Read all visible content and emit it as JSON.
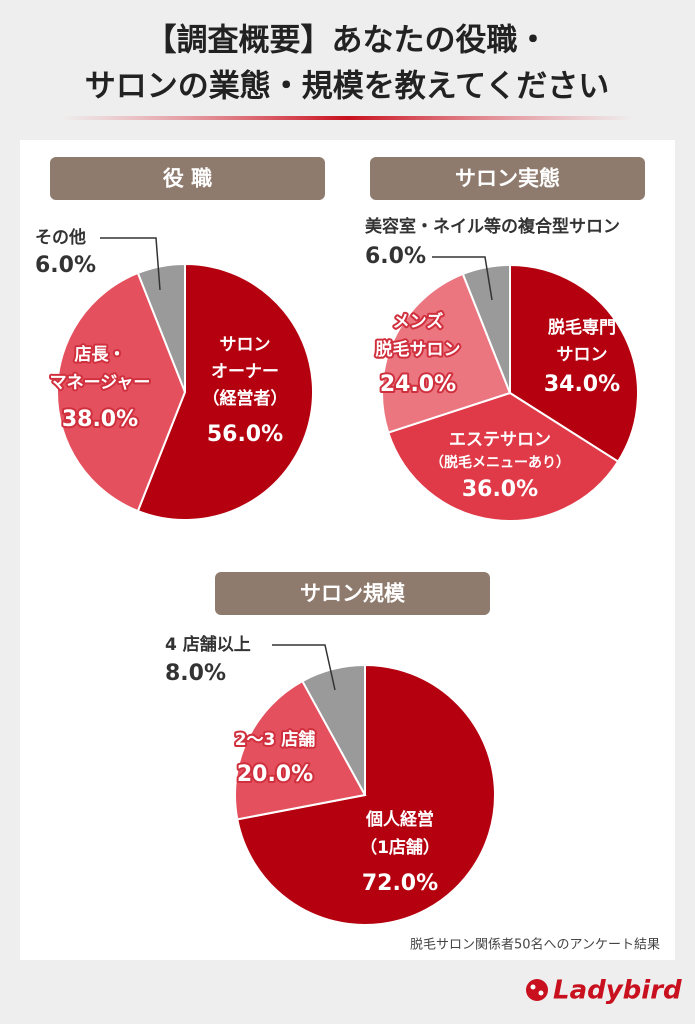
{
  "header": {
    "title": [
      "【調査概要】あなたの役職・",
      "サロンの業態・規模を教えてください"
    ]
  },
  "chart_data": [
    {
      "type": "pie",
      "title": "役 職",
      "categories": [
        [
          "サロン",
          "オーナー",
          "（経営者）"
        ],
        [
          "店長・",
          "マネージャー"
        ],
        [
          "その他"
        ]
      ],
      "values": [
        56,
        38,
        6
      ],
      "value_labels": [
        "56.0%",
        "38.0%",
        "6.0%"
      ],
      "colors": [
        "#b5000f",
        "#e4505d",
        "#9a9a9a"
      ]
    },
    {
      "type": "pie",
      "title": "サロン実態",
      "categories": [
        [
          "脱毛専門",
          "サロン"
        ],
        [
          "エステサロン",
          "（脱毛メニューあり）"
        ],
        [
          "メンズ",
          "脱毛サロン"
        ],
        [
          "美容室・ネイル等の複合型サロン"
        ]
      ],
      "values": [
        34,
        36,
        24,
        6
      ],
      "value_labels": [
        "34.0%",
        "36.0%",
        "24.0%",
        "6.0%"
      ],
      "colors": [
        "#b5000f",
        "#e03a48",
        "#ec7680",
        "#9a9a9a"
      ]
    },
    {
      "type": "pie",
      "title": "サロン規模",
      "categories": [
        [
          "個人経営",
          "（1店舗）"
        ],
        [
          "2〜3 店舗"
        ],
        [
          "4 店舗以上"
        ]
      ],
      "values": [
        72,
        20,
        8
      ],
      "value_labels": [
        "72.0%",
        "20.0%",
        "8.0%"
      ],
      "colors": [
        "#b5000f",
        "#e4505d",
        "#9a9a9a"
      ]
    }
  ],
  "note": "脱毛サロン関係者50名へのアンケート結果",
  "brand": "Ladybird"
}
